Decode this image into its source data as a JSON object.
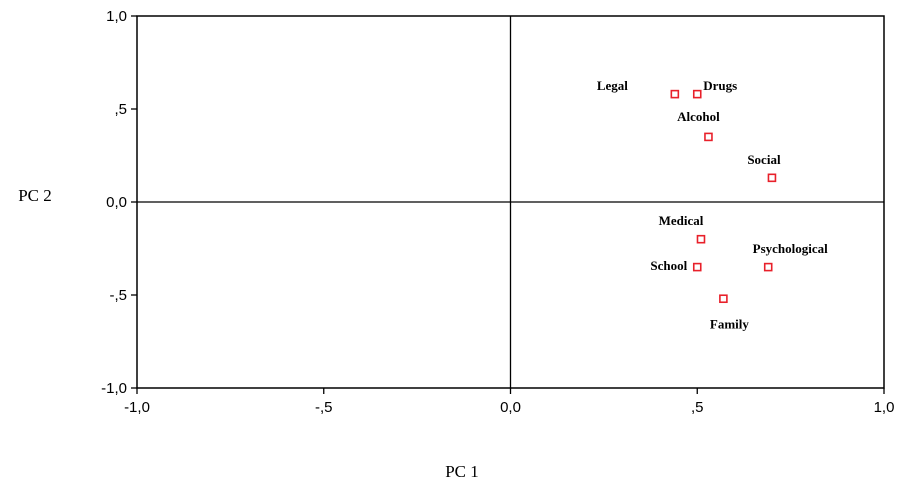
{
  "chart_data": {
    "type": "scatter",
    "xlabel": "PC 1",
    "ylabel": "PC 2",
    "xlim": [
      -1.0,
      1.0
    ],
    "ylim": [
      -1.0,
      1.0
    ],
    "x_ticks": [
      {
        "value": -1.0,
        "label": "-1,0"
      },
      {
        "value": -0.5,
        "label": "-,5"
      },
      {
        "value": 0.0,
        "label": "0,0"
      },
      {
        "value": 0.5,
        "label": ",5"
      },
      {
        "value": 1.0,
        "label": "1,0"
      }
    ],
    "y_ticks": [
      {
        "value": 1.0,
        "label": "1,0"
      },
      {
        "value": 0.5,
        "label": ",5"
      },
      {
        "value": 0.0,
        "label": "0,0"
      },
      {
        "value": -0.5,
        "label": "-,5"
      },
      {
        "value": -1.0,
        "label": "-1,0"
      }
    ],
    "reference_lines": {
      "x": 0,
      "y": 0
    },
    "grid": false,
    "marker": {
      "shape": "square",
      "color": "#e8202a"
    },
    "points": [
      {
        "label": "Legal",
        "x": 0.44,
        "y": 0.58
      },
      {
        "label": "Drugs",
        "x": 0.5,
        "y": 0.58
      },
      {
        "label": "Alcohol",
        "x": 0.53,
        "y": 0.35
      },
      {
        "label": "Social",
        "x": 0.7,
        "y": 0.13
      },
      {
        "label": "Medical",
        "x": 0.51,
        "y": -0.2
      },
      {
        "label": "School",
        "x": 0.5,
        "y": -0.35
      },
      {
        "label": "Psychological",
        "x": 0.69,
        "y": -0.35
      },
      {
        "label": "Family",
        "x": 0.57,
        "y": -0.52
      }
    ]
  }
}
